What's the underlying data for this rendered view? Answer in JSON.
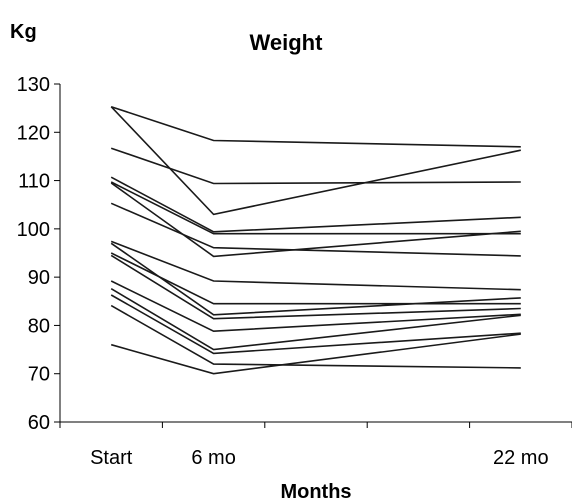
{
  "chart_data": {
    "type": "line",
    "title": "Weight",
    "ylabel": "Kg",
    "xlabel": "Months",
    "x_positions": [
      0.5,
      1.5,
      4.5
    ],
    "x_tick_labels": [
      "Start",
      "6 mo",
      "22 mo"
    ],
    "ylim": [
      60,
      130
    ],
    "yticks": [
      60,
      70,
      80,
      90,
      100,
      110,
      120,
      130
    ],
    "grid": false,
    "series": [
      {
        "values": [
          125.3,
          118.3,
          117.0
        ]
      },
      {
        "values": [
          125.3,
          103.0,
          116.3
        ]
      },
      {
        "values": [
          116.7,
          109.4,
          109.7
        ]
      },
      {
        "values": [
          110.7,
          99.4,
          102.4
        ]
      },
      {
        "values": [
          109.7,
          99.0,
          99.0
        ]
      },
      {
        "values": [
          109.5,
          94.3,
          99.5
        ]
      },
      {
        "values": [
          105.3,
          96.1,
          94.4
        ]
      },
      {
        "values": [
          97.4,
          89.2,
          87.4
        ]
      },
      {
        "values": [
          97.0,
          82.2,
          85.7
        ]
      },
      {
        "values": [
          95.0,
          84.5,
          84.5
        ]
      },
      {
        "values": [
          94.5,
          81.4,
          83.5
        ]
      },
      {
        "values": [
          89.2,
          78.8,
          82.3
        ]
      },
      {
        "values": [
          87.6,
          75.0,
          82.1
        ]
      },
      {
        "values": [
          86.3,
          74.2,
          78.4
        ]
      },
      {
        "values": [
          84.1,
          72.0,
          71.2
        ]
      },
      {
        "values": [
          76.0,
          70.0,
          78.2
        ]
      }
    ]
  }
}
